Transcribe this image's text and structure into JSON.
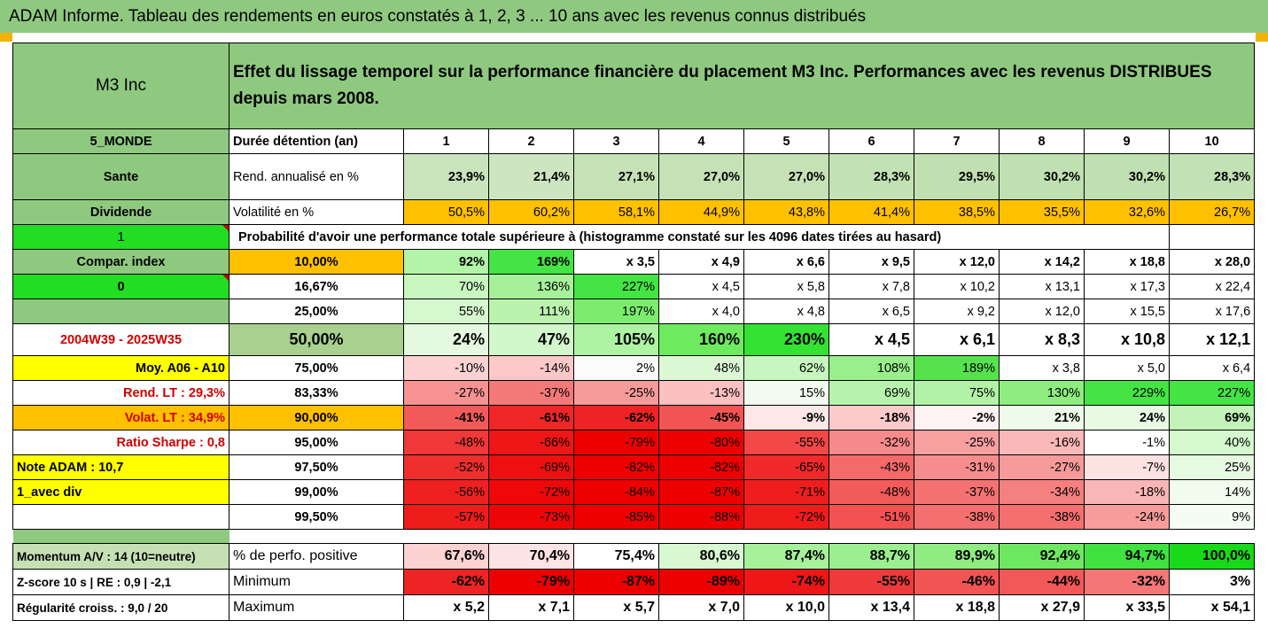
{
  "title": "ADAM Informe. Tableau des rendements en euros constatés à 1, 2, 3 ... 10 ans avec les revenus connus distribués",
  "fund_name": "M3 Inc",
  "description": "Effet du lissage temporel sur la performance financière du placement M3 Inc. Performances avec les revenus DISTRIBUES depuis mars 2008.",
  "header": {
    "category": "5_MONDE",
    "label": "Durée détention (an)",
    "years": [
      "1",
      "2",
      "3",
      "4",
      "5",
      "6",
      "7",
      "8",
      "9",
      "10"
    ]
  },
  "rend": {
    "side": "Sante",
    "label": "Rend. annualisé en %",
    "values": [
      "23,9%",
      "21,4%",
      "27,1%",
      "27,0%",
      "27,0%",
      "28,3%",
      "29,5%",
      "30,2%",
      "30,2%",
      "28,3%"
    ]
  },
  "vol": {
    "side": "Dividende",
    "label": "Volatilité en %",
    "values": [
      "50,5%",
      "60,2%",
      "58,1%",
      "44,9%",
      "43,8%",
      "41,4%",
      "38,5%",
      "35,5%",
      "32,6%",
      "26,7%"
    ]
  },
  "prob": {
    "side": "1",
    "label": "Probabilité d'avoir une performance totale supérieure à (histogramme constaté sur les 4096 dates tirées au hasard)"
  },
  "left": {
    "compar": "Compar. index",
    "zero": "0",
    "blank": "",
    "period": "2004W39 - 2025W35",
    "moy": "Moy. A06 - A10",
    "rend_lt": "Rend. LT :   29,3%",
    "volat_lt": "Volat. LT :   34,9%",
    "sharpe": "Ratio Sharpe :   0,8",
    "note": "Note ADAM : 10,7",
    "avec_div": "1_avec div"
  },
  "rows": [
    {
      "pct": "10,00%",
      "values": [
        "92%",
        "169%",
        "x 3,5",
        "x 4,9",
        "x 6,6",
        "x 9,5",
        "x 12,0",
        "x 14,2",
        "x 18,8",
        "x 28,0"
      ]
    },
    {
      "pct": "16,67%",
      "values": [
        "70%",
        "136%",
        "227%",
        "x 4,5",
        "x 5,8",
        "x 7,8",
        "x 10,2",
        "x 13,1",
        "x 17,3",
        "x 22,4"
      ]
    },
    {
      "pct": "25,00%",
      "values": [
        "55%",
        "111%",
        "197%",
        "x 4,0",
        "x 4,8",
        "x 6,5",
        "x 9,2",
        "x 12,0",
        "x 15,5",
        "x 17,6"
      ]
    },
    {
      "pct": "50,00%",
      "values": [
        "24%",
        "47%",
        "105%",
        "160%",
        "230%",
        "x 4,5",
        "x 6,1",
        "x 8,3",
        "x 10,8",
        "x 12,1"
      ]
    },
    {
      "pct": "75,00%",
      "values": [
        "-10%",
        "-14%",
        "2%",
        "48%",
        "62%",
        "108%",
        "189%",
        "x 3,8",
        "x 5,0",
        "x 6,4"
      ]
    },
    {
      "pct": "83,33%",
      "values": [
        "-27%",
        "-37%",
        "-25%",
        "-13%",
        "15%",
        "69%",
        "75%",
        "130%",
        "229%",
        "227%"
      ]
    },
    {
      "pct": "90,00%",
      "values": [
        "-41%",
        "-61%",
        "-62%",
        "-45%",
        "-9%",
        "-18%",
        "-2%",
        "21%",
        "24%",
        "69%"
      ]
    },
    {
      "pct": "95,00%",
      "values": [
        "-48%",
        "-66%",
        "-79%",
        "-80%",
        "-55%",
        "-32%",
        "-25%",
        "-16%",
        "-1%",
        "40%"
      ]
    },
    {
      "pct": "97,50%",
      "values": [
        "-52%",
        "-69%",
        "-82%",
        "-82%",
        "-65%",
        "-43%",
        "-31%",
        "-27%",
        "-7%",
        "25%"
      ]
    },
    {
      "pct": "99,00%",
      "values": [
        "-56%",
        "-72%",
        "-84%",
        "-87%",
        "-71%",
        "-48%",
        "-37%",
        "-34%",
        "-18%",
        "14%"
      ]
    },
    {
      "pct": "99,50%",
      "values": [
        "-57%",
        "-73%",
        "-85%",
        "-88%",
        "-72%",
        "-51%",
        "-38%",
        "-38%",
        "-24%",
        "9%"
      ]
    }
  ],
  "bottom": [
    {
      "side": "Momentum A/V : 14 (10=neutre)",
      "label": "% de perfo. positive",
      "values": [
        "67,6%",
        "70,4%",
        "75,4%",
        "80,6%",
        "87,4%",
        "88,7%",
        "89,9%",
        "92,4%",
        "94,7%",
        "100,0%"
      ]
    },
    {
      "side": "Z-score 10 s  | RE : 0,9 | -2,1",
      "label": "Minimum",
      "values": [
        "-62%",
        "-79%",
        "-87%",
        "-89%",
        "-74%",
        "-55%",
        "-46%",
        "-44%",
        "-32%",
        "3%"
      ]
    },
    {
      "side": "Régularité croiss. : 9,0 / 20",
      "label": "Maximum",
      "values": [
        "x 5,2",
        "x 7,1",
        "x 5,7",
        "x 7,0",
        "x 10,0",
        "x 13,4",
        "x 18,8",
        "x 27,9",
        "x 33,5",
        "x 54,1"
      ]
    }
  ],
  "colors": {
    "header_green": "#8fc980",
    "bright_green": "#22dd22",
    "orange": "#ffc000",
    "yellow": "#ffff00",
    "red": "#ee0000"
  }
}
